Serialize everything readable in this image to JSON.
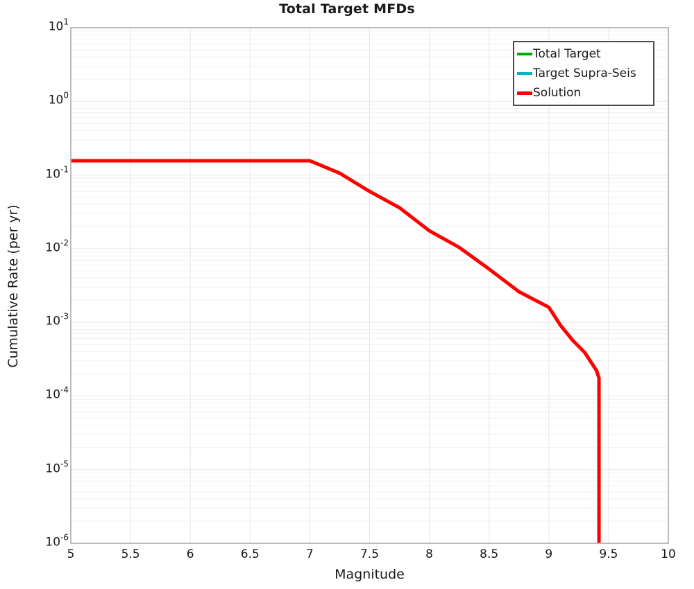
{
  "chart_data": {
    "type": "line",
    "title": "Total Target MFDs",
    "xlabel": "Magnitude",
    "ylabel": "Cumulative Rate (per yr)",
    "xlim": [
      5,
      10
    ],
    "ylim_log10": [
      -6,
      1
    ],
    "x_ticks": [
      5,
      5.5,
      6,
      6.5,
      7,
      7.5,
      8,
      8.5,
      9,
      9.5,
      10
    ],
    "y_tick_exponents": [
      1,
      0,
      -1,
      -2,
      -3,
      -4,
      -5,
      -6
    ],
    "grid": {
      "vertical_ticks": [
        5.5,
        6,
        6.5,
        7,
        7.5,
        8,
        8.5,
        9,
        9.5
      ],
      "log_minor_horizontals": true,
      "major_color": "#e7e7e7",
      "minor_color": "#f1f1f1",
      "frame_color": "#ababab"
    },
    "legend": {
      "position": "top-right",
      "border_color": "#4a4a4a"
    },
    "series": [
      {
        "name": "Total Target",
        "color": "#00b000",
        "line_width": 4,
        "note": "curve coincides with Solution and is hidden beneath it",
        "points": [
          [
            5.0,
            0.156
          ],
          [
            7.0,
            0.156
          ],
          [
            7.25,
            0.106
          ],
          [
            7.5,
            0.06
          ],
          [
            7.75,
            0.036
          ],
          [
            8.0,
            0.0175
          ],
          [
            8.25,
            0.0104
          ],
          [
            8.5,
            0.0053
          ],
          [
            8.75,
            0.0026
          ],
          [
            9.0,
            0.0016
          ],
          [
            9.1,
            0.0009
          ],
          [
            9.2,
            0.00057
          ],
          [
            9.3,
            0.00039
          ],
          [
            9.4,
            0.00022
          ],
          [
            9.42,
            0.000175
          ],
          [
            9.42,
            1e-06
          ]
        ]
      },
      {
        "name": "Target Supra-Seis",
        "color": "#00b6be",
        "line_width": 4,
        "note": "curve coincides with Solution and is hidden beneath it",
        "points": [
          [
            5.0,
            0.156
          ],
          [
            7.0,
            0.156
          ],
          [
            7.25,
            0.106
          ],
          [
            7.5,
            0.06
          ],
          [
            7.75,
            0.036
          ],
          [
            8.0,
            0.0175
          ],
          [
            8.25,
            0.0104
          ],
          [
            8.5,
            0.0053
          ],
          [
            8.75,
            0.0026
          ],
          [
            9.0,
            0.0016
          ],
          [
            9.1,
            0.0009
          ],
          [
            9.2,
            0.00057
          ],
          [
            9.3,
            0.00039
          ],
          [
            9.4,
            0.00022
          ],
          [
            9.42,
            0.000175
          ],
          [
            9.42,
            1e-06
          ]
        ]
      },
      {
        "name": "Solution",
        "color": "#ff0000",
        "line_width": 5,
        "note": "visible red curve: flat at 0.156/yr from M5 to M7, tapered Gutenberg-Richter decay to M9.4, vertical cutoff at M9.42",
        "points": [
          [
            5.0,
            0.156
          ],
          [
            7.0,
            0.156
          ],
          [
            7.25,
            0.106
          ],
          [
            7.5,
            0.06
          ],
          [
            7.75,
            0.036
          ],
          [
            8.0,
            0.0175
          ],
          [
            8.25,
            0.0104
          ],
          [
            8.5,
            0.0053
          ],
          [
            8.75,
            0.0026
          ],
          [
            9.0,
            0.0016
          ],
          [
            9.1,
            0.0009
          ],
          [
            9.2,
            0.00057
          ],
          [
            9.3,
            0.00039
          ],
          [
            9.4,
            0.00022
          ],
          [
            9.42,
            0.000175
          ],
          [
            9.42,
            1e-06
          ]
        ]
      }
    ]
  }
}
